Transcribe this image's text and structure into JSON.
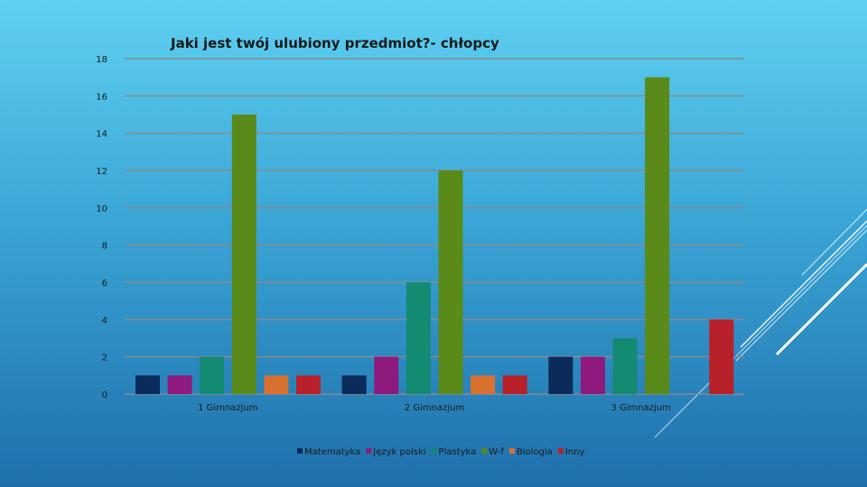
{
  "chart_data": {
    "type": "bar",
    "title": "Jaki jest twój ulubiony przedmiot?- chłopcy",
    "categories": [
      "1 Gimnazjum",
      "2 Gimnazjum",
      "3 Gimnazjum"
    ],
    "series": [
      {
        "name": "Matematyka",
        "color": "#0b2b5a",
        "values": [
          1,
          1,
          2
        ]
      },
      {
        "name": "Język polski",
        "color": "#8e1a7e",
        "values": [
          1,
          2,
          2
        ]
      },
      {
        "name": "Plastyka",
        "color": "#138a72",
        "values": [
          2,
          6,
          3
        ]
      },
      {
        "name": "W-f",
        "color": "#5a8a1a",
        "values": [
          15,
          12,
          17
        ]
      },
      {
        "name": "Biologia",
        "color": "#d8702f",
        "values": [
          1,
          1,
          0
        ]
      },
      {
        "name": "Inny",
        "color": "#b8202a",
        "values": [
          1,
          1,
          4
        ]
      }
    ],
    "yticks": [
      "0",
      "2",
      "4",
      "6",
      "8",
      "10",
      "12",
      "14",
      "16",
      "18"
    ],
    "ylim": [
      0,
      18
    ],
    "grid": true,
    "legend": "bottom"
  }
}
